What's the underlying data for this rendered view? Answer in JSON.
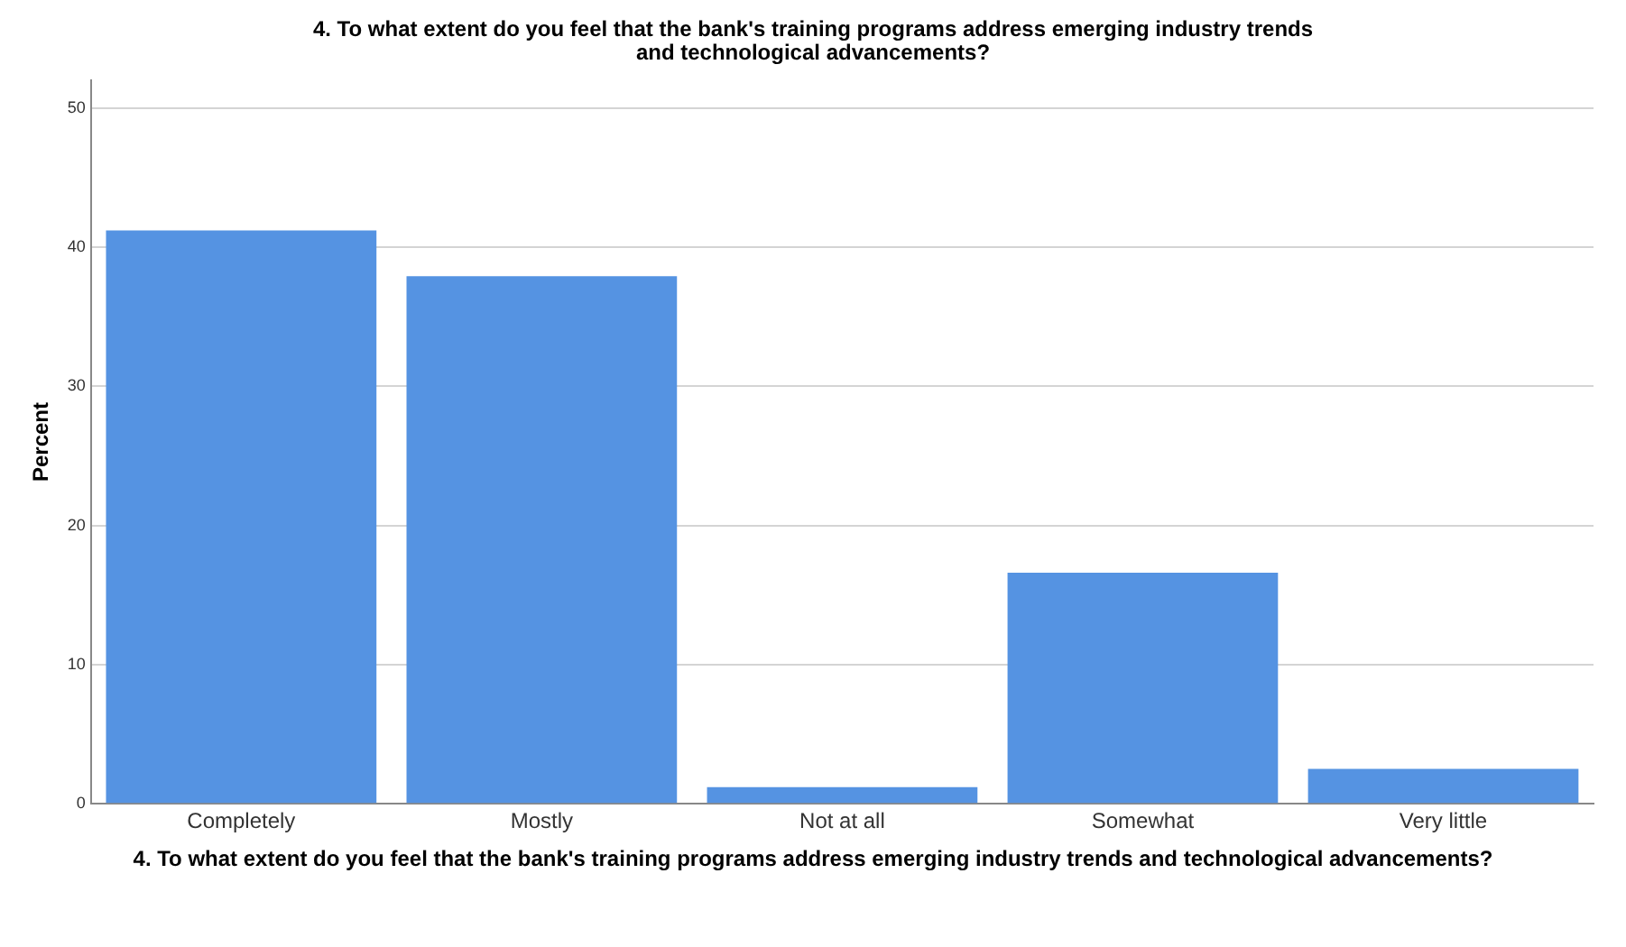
{
  "chart_data": {
    "type": "bar",
    "title": "4.  To what extent do you feel that the bank's training programs address emerging industry trends and technological advancements?",
    "xlabel": "4.  To what extent do you feel that the bank's training programs address emerging industry trends and technological advancements?",
    "ylabel": "Percent",
    "categories": [
      "Completely",
      "Mostly",
      "Not at all",
      "Somewhat",
      "Very little"
    ],
    "values": [
      41.2,
      37.9,
      1.2,
      16.6,
      2.5
    ],
    "color": "#5593e2",
    "ylim": [
      0,
      52
    ],
    "yticks": [
      0,
      10,
      20,
      30,
      40,
      50
    ],
    "grid": "y"
  }
}
